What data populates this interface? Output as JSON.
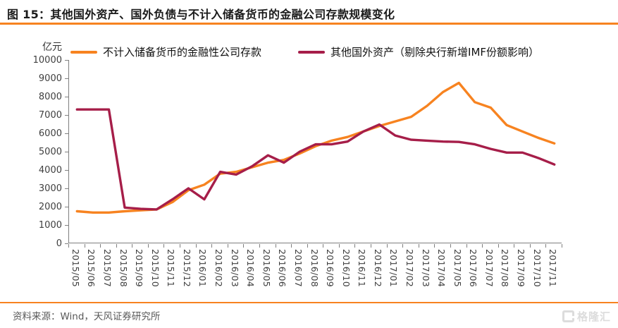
{
  "header": {
    "title": "图 15：其他国外资产、国外负债与不计入储备货币的金融公司存款规模变化"
  },
  "colors": {
    "accent_orange": "#F78320",
    "series_crimson": "#A61E49",
    "axis_gray": "#7f7f7f",
    "watermark_gray": "#dcdcdc"
  },
  "chart_data": {
    "type": "line",
    "title": "图 15：其他国外资产、国外负债与不计入储备货币的金融公司存款规模变化",
    "y_unit": "亿元",
    "ylim": [
      0,
      10000
    ],
    "y_tick_step": 1000,
    "y_ticks": [
      0,
      1000,
      2000,
      3000,
      4000,
      5000,
      6000,
      7000,
      8000,
      9000,
      10000
    ],
    "grid": false,
    "legend_position": "top",
    "categories": [
      "2015/05",
      "2015/06",
      "2015/07",
      "2015/08",
      "2015/09",
      "2015/10",
      "2015/11",
      "2015/12",
      "2016/01",
      "2016/02",
      "2016/03",
      "2016/04",
      "2016/05",
      "2016/06",
      "2016/07",
      "2016/08",
      "2016/09",
      "2016/10",
      "2016/11",
      "2016/12",
      "2017/01",
      "2017/02",
      "2017/03",
      "2017/04",
      "2017/05",
      "2017/06",
      "2017/07",
      "2017/08",
      "2017/09",
      "2017/10",
      "2017/11"
    ],
    "series": [
      {
        "name": "不计入储备货币的金融性公司存款",
        "color": "#F78320",
        "values": [
          1750,
          1680,
          1680,
          1750,
          1800,
          1850,
          2250,
          2900,
          3200,
          3800,
          3900,
          4150,
          4400,
          4550,
          4900,
          5300,
          5600,
          5800,
          6100,
          6400,
          6650,
          6900,
          7500,
          8250,
          8750,
          7700,
          7400,
          6450,
          6100,
          5750,
          5450
        ]
      },
      {
        "name": "其他国外资产（剔除央行新增IMF份额影响）",
        "color": "#A61E49",
        "values": [
          7300,
          7300,
          7300,
          1950,
          1880,
          1850,
          2400,
          3000,
          2400,
          3900,
          3750,
          4200,
          4800,
          4400,
          5000,
          5400,
          5400,
          5550,
          6100,
          6480,
          5880,
          5650,
          5600,
          5550,
          5530,
          5400,
          5150,
          4950,
          4950,
          4650,
          4300
        ]
      }
    ]
  },
  "footer": {
    "source": "资料来源：Wind，天风证券研究所"
  },
  "logo": {
    "text": "格隆汇"
  }
}
